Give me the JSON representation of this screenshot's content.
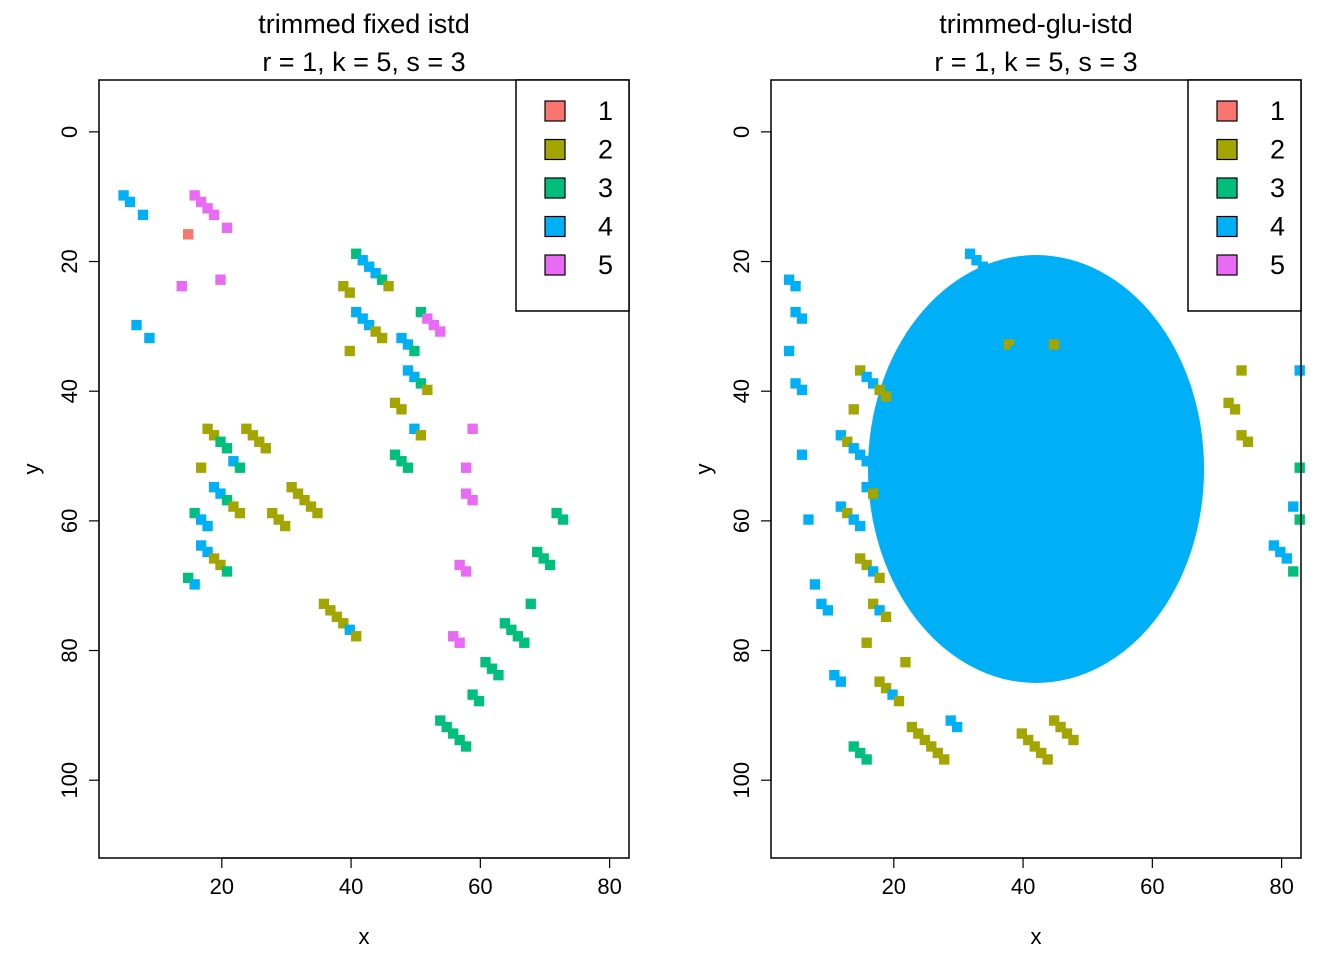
{
  "chart_data": [
    {
      "type": "heatmap",
      "title": "trimmed fixed istd",
      "subtitle": "r = 1, k = 5, s = 3",
      "xlabel": "x",
      "ylabel": "y",
      "xlim": [
        1,
        83
      ],
      "ylim": [
        112,
        -8
      ],
      "xticks": [
        20,
        40,
        60,
        80
      ],
      "yticks": [
        0,
        20,
        40,
        60,
        80,
        100
      ],
      "legend": {
        "position": "top-right",
        "entries": [
          {
            "label": "1",
            "color": "#F8766D"
          },
          {
            "label": "2",
            "color": "#A3A500"
          },
          {
            "label": "3",
            "color": "#00BF7D"
          },
          {
            "label": "4",
            "color": "#00B0F6"
          },
          {
            "label": "5",
            "color": "#E76BF3"
          }
        ]
      },
      "cells": [
        [
          3,
          1,
          4
        ],
        [
          4,
          1,
          4
        ],
        [
          5,
          3,
          4
        ],
        [
          6,
          1,
          4
        ],
        [
          7,
          3,
          4
        ],
        [
          12,
          2,
          5
        ],
        [
          13,
          1,
          1
        ],
        [
          14,
          1,
          5
        ],
        [
          15,
          1,
          5
        ],
        [
          16,
          1,
          5
        ],
        [
          17,
          1,
          5
        ],
        [
          18,
          2,
          5
        ],
        [
          19,
          1,
          5
        ],
        [
          15,
          5,
          2
        ],
        [
          16,
          5,
          2
        ],
        [
          17,
          5,
          2
        ],
        [
          18,
          5,
          3
        ],
        [
          19,
          5,
          3
        ],
        [
          14,
          6,
          3
        ],
        [
          15,
          6,
          4
        ],
        [
          16,
          6,
          4
        ],
        [
          17,
          6,
          4
        ],
        [
          18,
          6,
          4
        ],
        [
          19,
          6,
          3
        ],
        [
          20,
          6,
          2
        ],
        [
          21,
          6,
          2
        ],
        [
          13,
          7,
          3
        ],
        [
          14,
          7,
          4
        ],
        [
          15,
          7,
          4
        ],
        [
          16,
          7,
          4
        ],
        [
          17,
          7,
          2
        ],
        [
          18,
          7,
          2
        ],
        [
          19,
          7,
          3
        ],
        [
          20,
          5,
          4
        ],
        [
          21,
          5,
          3
        ],
        [
          22,
          5,
          2
        ],
        [
          23,
          5,
          2
        ],
        [
          24,
          5,
          2
        ],
        [
          25,
          5,
          2
        ],
        [
          26,
          6,
          2
        ],
        [
          27,
          6,
          2
        ],
        [
          28,
          6,
          2
        ],
        [
          29,
          6,
          2
        ],
        [
          30,
          6,
          2
        ],
        [
          31,
          6,
          2
        ],
        [
          32,
          6,
          2
        ],
        [
          33,
          6,
          2
        ],
        [
          37,
          2,
          2
        ],
        [
          38,
          2,
          2
        ],
        [
          39,
          2,
          3
        ],
        [
          40,
          2,
          4
        ],
        [
          41,
          2,
          4
        ],
        [
          42,
          2,
          4
        ],
        [
          43,
          2,
          3
        ],
        [
          44,
          2,
          2
        ],
        [
          38,
          3,
          2
        ],
        [
          39,
          3,
          4
        ],
        [
          40,
          3,
          4
        ],
        [
          41,
          3,
          4
        ],
        [
          42,
          3,
          2
        ],
        [
          43,
          3,
          2
        ],
        [
          45,
          4,
          2
        ],
        [
          46,
          4,
          2
        ],
        [
          47,
          4,
          4
        ],
        [
          48,
          4,
          4
        ],
        [
          49,
          4,
          3
        ],
        [
          50,
          4,
          2
        ],
        [
          46,
          3,
          4
        ],
        [
          47,
          3,
          4
        ],
        [
          48,
          3,
          3
        ],
        [
          49,
          3,
          3
        ],
        [
          50,
          3,
          5
        ],
        [
          51,
          3,
          5
        ],
        [
          52,
          3,
          5
        ],
        [
          45,
          5,
          3
        ],
        [
          46,
          5,
          3
        ],
        [
          47,
          5,
          3
        ],
        [
          48,
          5,
          4
        ],
        [
          49,
          5,
          2
        ],
        [
          65,
          0,
          3
        ],
        [
          66,
          0,
          3
        ],
        [
          65,
          1,
          4
        ],
        [
          66,
          1,
          4
        ],
        [
          67,
          1,
          3
        ],
        [
          34,
          8,
          2
        ],
        [
          35,
          8,
          2
        ],
        [
          36,
          8,
          2
        ],
        [
          37,
          8,
          2
        ],
        [
          38,
          8,
          4
        ],
        [
          39,
          8,
          2
        ],
        [
          56,
          5,
          5
        ],
        [
          57,
          5,
          5
        ],
        [
          56,
          6,
          5
        ],
        [
          57,
          6,
          5
        ],
        [
          55,
          7,
          5
        ],
        [
          56,
          7,
          5
        ],
        [
          54,
          8,
          5
        ],
        [
          55,
          8,
          5
        ],
        [
          52,
          10,
          3
        ],
        [
          53,
          10,
          3
        ],
        [
          54,
          10,
          3
        ],
        [
          55,
          10,
          3
        ],
        [
          56,
          10,
          3
        ],
        [
          57,
          9,
          3
        ],
        [
          58,
          9,
          3
        ],
        [
          59,
          9,
          3
        ],
        [
          60,
          9,
          3
        ],
        [
          61,
          9,
          3
        ],
        [
          62,
          8,
          3
        ],
        [
          63,
          8,
          3
        ],
        [
          64,
          8,
          3
        ],
        [
          65,
          8,
          3
        ],
        [
          66,
          8,
          3
        ],
        [
          67,
          7,
          3
        ],
        [
          68,
          7,
          3
        ],
        [
          69,
          7,
          3
        ],
        [
          70,
          6,
          3
        ],
        [
          71,
          6,
          3
        ]
      ]
    },
    {
      "type": "heatmap",
      "title": "trimmed-glu-istd",
      "subtitle": "r = 1, k = 5, s = 3",
      "xlabel": "x",
      "ylabel": "y",
      "xlim": [
        1,
        83
      ],
      "ylim": [
        112,
        -8
      ],
      "xticks": [
        20,
        40,
        60,
        80
      ],
      "yticks": [
        0,
        20,
        40,
        60,
        80,
        100
      ],
      "legend": {
        "position": "top-right",
        "entries": [
          {
            "label": "1",
            "color": "#F8766D"
          },
          {
            "label": "2",
            "color": "#A3A500"
          },
          {
            "label": "3",
            "color": "#00BF7D"
          },
          {
            "label": "4",
            "color": "#00B0F6"
          },
          {
            "label": "5",
            "color": "#E76BF3"
          }
        ]
      },
      "cells": [
        [
          30,
          2,
          4
        ],
        [
          31,
          2,
          4
        ],
        [
          32,
          2,
          4
        ],
        [
          33,
          2,
          4
        ],
        [
          34,
          2,
          4
        ],
        [
          36,
          3,
          2
        ],
        [
          37,
          3,
          4
        ],
        [
          38,
          3,
          4
        ],
        [
          39,
          3,
          4
        ],
        [
          40,
          3,
          4
        ],
        [
          41,
          3,
          4
        ],
        [
          42,
          3,
          4
        ],
        [
          43,
          3,
          2
        ],
        [
          12,
          4,
          2
        ],
        [
          13,
          4,
          2
        ],
        [
          14,
          4,
          4
        ],
        [
          15,
          4,
          4
        ],
        [
          16,
          4,
          2
        ],
        [
          17,
          4,
          2
        ],
        [
          70,
          4,
          2
        ],
        [
          71,
          4,
          2
        ],
        [
          72,
          4,
          2
        ],
        [
          10,
          5,
          4
        ],
        [
          11,
          5,
          2
        ],
        [
          12,
          5,
          4
        ],
        [
          13,
          5,
          4
        ],
        [
          14,
          5,
          4
        ],
        [
          15,
          5,
          4
        ],
        [
          16,
          5,
          4
        ],
        [
          72,
          5,
          2
        ],
        [
          73,
          5,
          2
        ],
        [
          10,
          6,
          4
        ],
        [
          11,
          6,
          2
        ],
        [
          12,
          6,
          4
        ],
        [
          13,
          6,
          4
        ],
        [
          14,
          6,
          4
        ],
        [
          15,
          6,
          2
        ],
        [
          13,
          7,
          2
        ],
        [
          14,
          7,
          2
        ],
        [
          15,
          7,
          4
        ],
        [
          16,
          7,
          2
        ],
        [
          14,
          8,
          2
        ],
        [
          15,
          8,
          2
        ],
        [
          16,
          8,
          4
        ],
        [
          17,
          8,
          2
        ],
        [
          16,
          9,
          2
        ],
        [
          17,
          9,
          2
        ],
        [
          18,
          9,
          4
        ],
        [
          19,
          9,
          2
        ],
        [
          20,
          9,
          2
        ],
        [
          21,
          10,
          2
        ],
        [
          22,
          10,
          2
        ],
        [
          23,
          10,
          2
        ],
        [
          24,
          10,
          2
        ],
        [
          25,
          10,
          2
        ],
        [
          26,
          10,
          2
        ],
        [
          27,
          10,
          4
        ],
        [
          28,
          10,
          4
        ],
        [
          38,
          10,
          2
        ],
        [
          39,
          10,
          2
        ],
        [
          40,
          10,
          2
        ],
        [
          41,
          10,
          2
        ],
        [
          42,
          10,
          2
        ],
        [
          43,
          10,
          2
        ],
        [
          44,
          10,
          2
        ],
        [
          45,
          10,
          2
        ],
        [
          46,
          10,
          2
        ],
        [
          2,
          2,
          4
        ],
        [
          3,
          2,
          4
        ],
        [
          2,
          3,
          4
        ],
        [
          3,
          3,
          4
        ],
        [
          4,
          3,
          4
        ],
        [
          3,
          4,
          4
        ],
        [
          4,
          4,
          4
        ],
        [
          4,
          5,
          4
        ],
        [
          5,
          6,
          4
        ],
        [
          6,
          7,
          4
        ],
        [
          7,
          8,
          4
        ],
        [
          8,
          8,
          4
        ],
        [
          9,
          9,
          4
        ],
        [
          10,
          9,
          4
        ],
        [
          12,
          10,
          3
        ],
        [
          13,
          10,
          3
        ],
        [
          14,
          10,
          3
        ],
        [
          77,
          7,
          4
        ],
        [
          78,
          7,
          4
        ],
        [
          79,
          7,
          4
        ],
        [
          80,
          6,
          4
        ],
        [
          80,
          7,
          3
        ],
        [
          81,
          6,
          3
        ],
        [
          81,
          5,
          3
        ],
        [
          81,
          4,
          4
        ]
      ],
      "blobs": [
        {
          "x": 42,
          "y": 52,
          "rx": 26,
          "ry": 33,
          "color": "#00B0F6"
        }
      ]
    }
  ]
}
